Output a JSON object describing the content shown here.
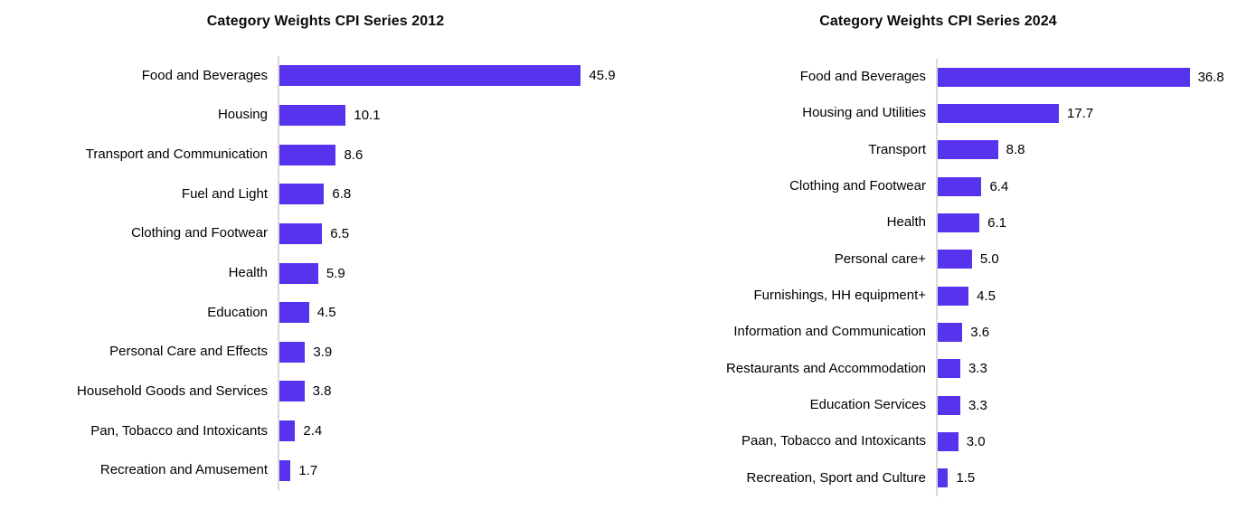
{
  "page": {
    "background_color": "#ffffff",
    "text_color": "#000000"
  },
  "style": {
    "bar_color": "#5733ee",
    "axis_line_color": "#d9d9d9"
  },
  "chart_data": [
    {
      "type": "bar",
      "orientation": "horizontal",
      "title": "Category Weights CPI Series 2012",
      "categories": [
        "Food and Beverages",
        "Housing",
        "Transport and Communication",
        "Fuel and Light",
        "Clothing and Footwear",
        "Health",
        "Education",
        "Personal Care and Effects",
        "Household Goods and Services",
        "Pan, Tobacco and Intoxicants",
        "Recreation and Amusement"
      ],
      "values": [
        45.9,
        10.1,
        8.6,
        6.8,
        6.5,
        5.9,
        4.5,
        3.9,
        3.8,
        2.4,
        1.7
      ],
      "xlabel": "",
      "ylabel": "",
      "xlim": [
        0,
        53
      ],
      "grid": false,
      "legend": null,
      "value_label_format": "one_decimal_right_of_bar"
    },
    {
      "type": "bar",
      "orientation": "horizontal",
      "title": "Category Weights CPI Series 2024",
      "categories": [
        "Food and Beverages",
        "Housing and Utilities",
        "Transport",
        "Clothing and Footwear",
        "Health",
        "Personal care+",
        "Furnishings, HH equipment+",
        "Information and Communication",
        "Restaurants and Accommodation",
        "Education Services",
        "Paan, Tobacco and Intoxicants",
        "Recreation, Sport and Culture"
      ],
      "values": [
        36.8,
        17.7,
        8.8,
        6.4,
        6.1,
        5.0,
        4.5,
        3.6,
        3.3,
        3.3,
        3.0,
        1.5
      ],
      "xlabel": "",
      "ylabel": "",
      "xlim": [
        0,
        46.5
      ],
      "grid": false,
      "legend": null,
      "value_label_format": "one_decimal_right_of_bar"
    }
  ]
}
